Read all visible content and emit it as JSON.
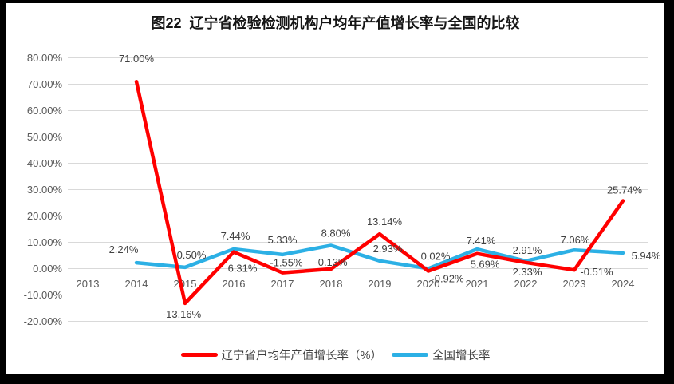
{
  "title": "图22  辽宁省检验检测机构户均年产值增长率与全国的比较",
  "chart_data": {
    "type": "line",
    "title": "图22  辽宁省检验检测机构户均年产值增长率与全国的比较",
    "categories": [
      "2013",
      "2014",
      "2015",
      "2016",
      "2017",
      "2018",
      "2019",
      "2020",
      "2021",
      "2022",
      "2023",
      "2024"
    ],
    "y_ticks": [
      "80.00%",
      "70.00%",
      "60.00%",
      "50.00%",
      "40.00%",
      "30.00%",
      "20.00%",
      "10.00%",
      "0.00%",
      "-10.00%",
      "-20.00%"
    ],
    "ylim": [
      -20,
      80
    ],
    "grid": true,
    "legend_position": "bottom",
    "colors": {
      "grid": "#d9d9d9",
      "tick_text": "#595959",
      "data_label": "#404040"
    },
    "series": [
      {
        "name": "辽宁省户均年产值增长率（%）",
        "color": "#ff0000",
        "values": [
          null,
          71.0,
          -13.16,
          6.31,
          -1.55,
          -0.13,
          13.14,
          -0.92,
          5.69,
          2.33,
          -0.51,
          25.74
        ],
        "point_labels": [
          null,
          {
            "text": "71.00%",
            "pos": "above",
            "dx": 0,
            "dy": -13
          },
          {
            "text": "-13.16%",
            "pos": "below",
            "dx": -4,
            "dy": 2
          },
          {
            "text": "6.31%",
            "pos": "below",
            "dx": 11,
            "dy": 9
          },
          {
            "text": "-1.55%",
            "pos": "above",
            "dx": 5,
            "dy": 3
          },
          {
            "text": "-0.13%",
            "pos": "above",
            "dx": 0,
            "dy": 7
          },
          {
            "text": "13.14%",
            "pos": "above",
            "dx": 6,
            "dy": 0
          },
          {
            "text": "-0.92%",
            "pos": "below",
            "dx": 24,
            "dy": -2
          },
          {
            "text": "5.69%",
            "pos": "below",
            "dx": 10,
            "dy": 2
          },
          {
            "text": "2.33%",
            "pos": "below",
            "dx": 2,
            "dy": 0
          },
          {
            "text": "-0.51%",
            "pos": "right",
            "dx": 28,
            "dy": 2
          },
          {
            "text": "25.74%",
            "pos": "above",
            "dx": 2,
            "dy": 2
          }
        ]
      },
      {
        "name": "全国增长率",
        "color": "#2cb0e5",
        "values": [
          null,
          2.24,
          0.5,
          7.44,
          5.33,
          8.8,
          2.93,
          0.02,
          7.41,
          2.91,
          7.06,
          5.94
        ],
        "point_labels": [
          null,
          {
            "text": "2.24%",
            "pos": "above",
            "dx": -16,
            "dy": -1
          },
          {
            "text": "0.50%",
            "pos": "above",
            "dx": 8,
            "dy": 0
          },
          {
            "text": "7.44%",
            "pos": "above",
            "dx": 2,
            "dy": -1
          },
          {
            "text": "5.33%",
            "pos": "above",
            "dx": 0,
            "dy": -3
          },
          {
            "text": "8.80%",
            "pos": "above",
            "dx": 6,
            "dy": 0
          },
          {
            "text": "2.93%",
            "pos": "above",
            "dx": 10,
            "dy": 0
          },
          {
            "text": "0.02%",
            "pos": "above",
            "dx": 9,
            "dy": 0
          },
          {
            "text": "7.41%",
            "pos": "above",
            "dx": 5,
            "dy": 5
          },
          {
            "text": "2.91%",
            "pos": "above",
            "dx": 2,
            "dy": 2
          },
          {
            "text": "7.06%",
            "pos": "above",
            "dx": 1,
            "dy": 3
          },
          {
            "text": "5.94%",
            "pos": "right",
            "dx": 29,
            "dy": 3
          }
        ]
      }
    ]
  }
}
